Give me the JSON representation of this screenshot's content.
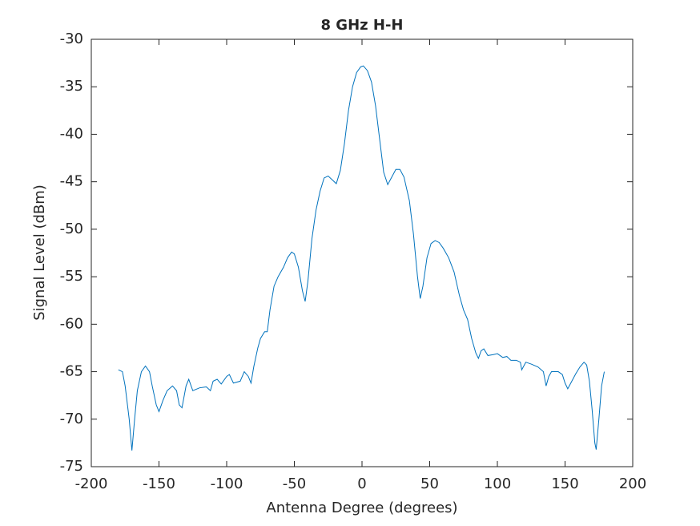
{
  "chart_data": {
    "type": "line",
    "title": "8 GHz H-H",
    "xlabel": "Antenna Degree (degrees)",
    "ylabel": "Signal Level (dBm)",
    "x": [
      -180,
      -177,
      -175,
      -172,
      -170,
      -168,
      -166,
      -163,
      -160,
      -157,
      -155,
      -152,
      -150,
      -147,
      -144,
      -140,
      -137,
      -135,
      -133,
      -130,
      -128,
      -125,
      -120,
      -115,
      -112,
      -110,
      -107,
      -104,
      -100,
      -98,
      -95,
      -90,
      -87,
      -84,
      -82,
      -80,
      -77,
      -75,
      -72,
      -70,
      -68,
      -65,
      -62,
      -58,
      -55,
      -52,
      -50,
      -47,
      -44,
      -42,
      -40,
      -37,
      -34,
      -31,
      -28,
      -25,
      -22,
      -19,
      -16,
      -13,
      -10,
      -7,
      -4,
      -1,
      1,
      4,
      7,
      10,
      13,
      16,
      19,
      22,
      25,
      28,
      31,
      35,
      38,
      41,
      43,
      45,
      48,
      51,
      54,
      57,
      60,
      64,
      68,
      72,
      75,
      78,
      81,
      84,
      86,
      88,
      90,
      93,
      97,
      100,
      104,
      107,
      110,
      114,
      117,
      118,
      121,
      125,
      130,
      134,
      136,
      138,
      140,
      145,
      148,
      150,
      152,
      155,
      158,
      161,
      164,
      166,
      168,
      170,
      172,
      173,
      175,
      177,
      179
    ],
    "series": [
      {
        "name": "signal",
        "color": "#0072bd",
        "values": [
          -64.8,
          -65,
          -66.5,
          -70,
          -73.3,
          -70,
          -67,
          -65,
          -64.4,
          -65,
          -66.5,
          -68.5,
          -69.2,
          -68,
          -67,
          -66.5,
          -67,
          -68.5,
          -68.8,
          -66.5,
          -65.8,
          -67,
          -66.7,
          -66.6,
          -67,
          -66,
          -65.8,
          -66.3,
          -65.5,
          -65.3,
          -66.2,
          -66,
          -65,
          -65.5,
          -66.2,
          -64.5,
          -62.5,
          -61.5,
          -60.8,
          -60.8,
          -58.5,
          -56,
          -55,
          -54,
          -53,
          -52.4,
          -52.6,
          -54,
          -56.5,
          -57.6,
          -55.5,
          -51,
          -48,
          -46,
          -44.6,
          -44.4,
          -44.8,
          -45.2,
          -43.8,
          -41,
          -37.5,
          -35,
          -33.5,
          -32.9,
          -32.8,
          -33.3,
          -34.5,
          -37,
          -40.5,
          -44,
          -45.3,
          -44.5,
          -43.7,
          -43.7,
          -44.5,
          -47,
          -50.5,
          -55,
          -57.3,
          -56,
          -53,
          -51.5,
          -51.2,
          -51.4,
          -52,
          -53,
          -54.5,
          -57,
          -58.5,
          -59.5,
          -61.5,
          -63,
          -63.6,
          -62.8,
          -62.6,
          -63.3,
          -63.2,
          -63.1,
          -63.5,
          -63.4,
          -63.8,
          -63.8,
          -64,
          -64.8,
          -64,
          -64.2,
          -64.5,
          -65,
          -66.5,
          -65.5,
          -65,
          -65,
          -65.3,
          -66.2,
          -66.8,
          -66,
          -65.2,
          -64.5,
          -64,
          -64.3,
          -66,
          -69,
          -72.5,
          -73.2,
          -70,
          -66.5,
          -65
        ]
      }
    ],
    "xlim": [
      -200,
      200
    ],
    "ylim": [
      -75,
      -30
    ],
    "xticks": [
      -200,
      -150,
      -100,
      -50,
      0,
      50,
      100,
      150,
      200
    ],
    "yticks": [
      -75,
      -70,
      -65,
      -60,
      -55,
      -50,
      -45,
      -40,
      -35,
      -30
    ]
  }
}
